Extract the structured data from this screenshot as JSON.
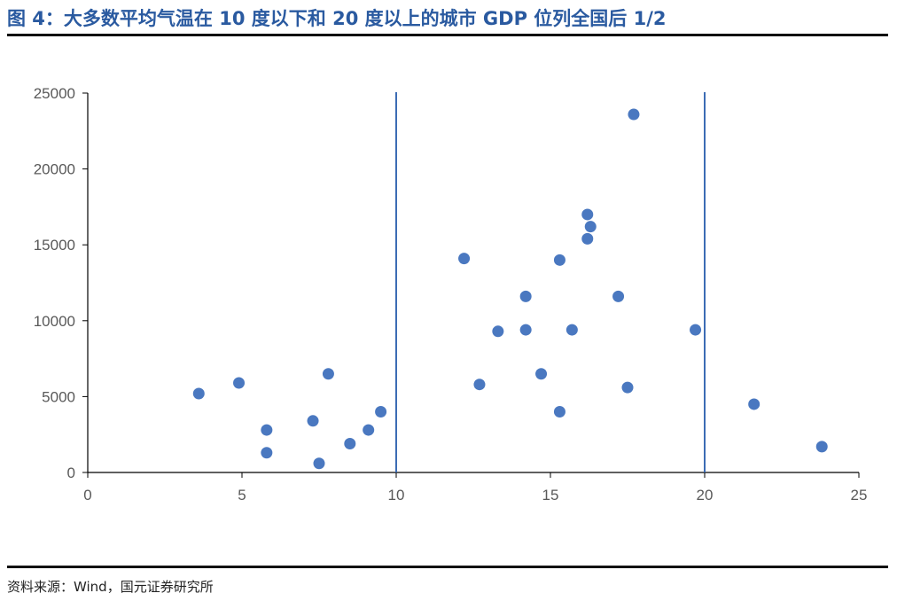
{
  "title": "图 4：大多数平均气温在 10 度以下和 20 度以上的城市 GDP 位列全国后 1/2",
  "source": "资料来源：Wind，国元证券研究所",
  "colors": {
    "title": "#2a5aa0",
    "points": "#4a78c0",
    "ref_lines": "#3c6cb4",
    "axis": "#000000"
  },
  "chart_data": {
    "type": "scatter",
    "title": "",
    "xlabel": "",
    "ylabel": "",
    "xlim": [
      0,
      25
    ],
    "ylim": [
      0,
      25000
    ],
    "x_ticks": [
      "0",
      "5",
      "10",
      "15",
      "20",
      "25"
    ],
    "y_ticks": [
      "0",
      "5000",
      "10000",
      "15000",
      "20000",
      "25000"
    ],
    "x_tick_values": [
      0,
      5,
      10,
      15,
      20,
      25
    ],
    "y_tick_values": [
      0,
      5000,
      10000,
      15000,
      20000,
      25000
    ],
    "grid": false,
    "reference_lines_x": [
      10,
      20
    ],
    "points": [
      {
        "x": 3.6,
        "y": 5200
      },
      {
        "x": 4.9,
        "y": 5900
      },
      {
        "x": 5.8,
        "y": 2800
      },
      {
        "x": 5.8,
        "y": 1300
      },
      {
        "x": 7.3,
        "y": 3400
      },
      {
        "x": 7.5,
        "y": 600
      },
      {
        "x": 7.8,
        "y": 6500
      },
      {
        "x": 8.5,
        "y": 1900
      },
      {
        "x": 9.1,
        "y": 2800
      },
      {
        "x": 9.5,
        "y": 4000
      },
      {
        "x": 12.2,
        "y": 14100
      },
      {
        "x": 12.7,
        "y": 5800
      },
      {
        "x": 13.3,
        "y": 9300
      },
      {
        "x": 14.2,
        "y": 11600
      },
      {
        "x": 14.2,
        "y": 9400
      },
      {
        "x": 14.7,
        "y": 6500
      },
      {
        "x": 15.3,
        "y": 14000
      },
      {
        "x": 15.3,
        "y": 4000
      },
      {
        "x": 15.7,
        "y": 9400
      },
      {
        "x": 16.2,
        "y": 17000
      },
      {
        "x": 16.3,
        "y": 16200
      },
      {
        "x": 16.2,
        "y": 15400
      },
      {
        "x": 17.2,
        "y": 11600
      },
      {
        "x": 17.5,
        "y": 5600
      },
      {
        "x": 17.7,
        "y": 23600
      },
      {
        "x": 19.7,
        "y": 9400
      },
      {
        "x": 21.6,
        "y": 4500
      },
      {
        "x": 23.8,
        "y": 1700
      }
    ]
  }
}
